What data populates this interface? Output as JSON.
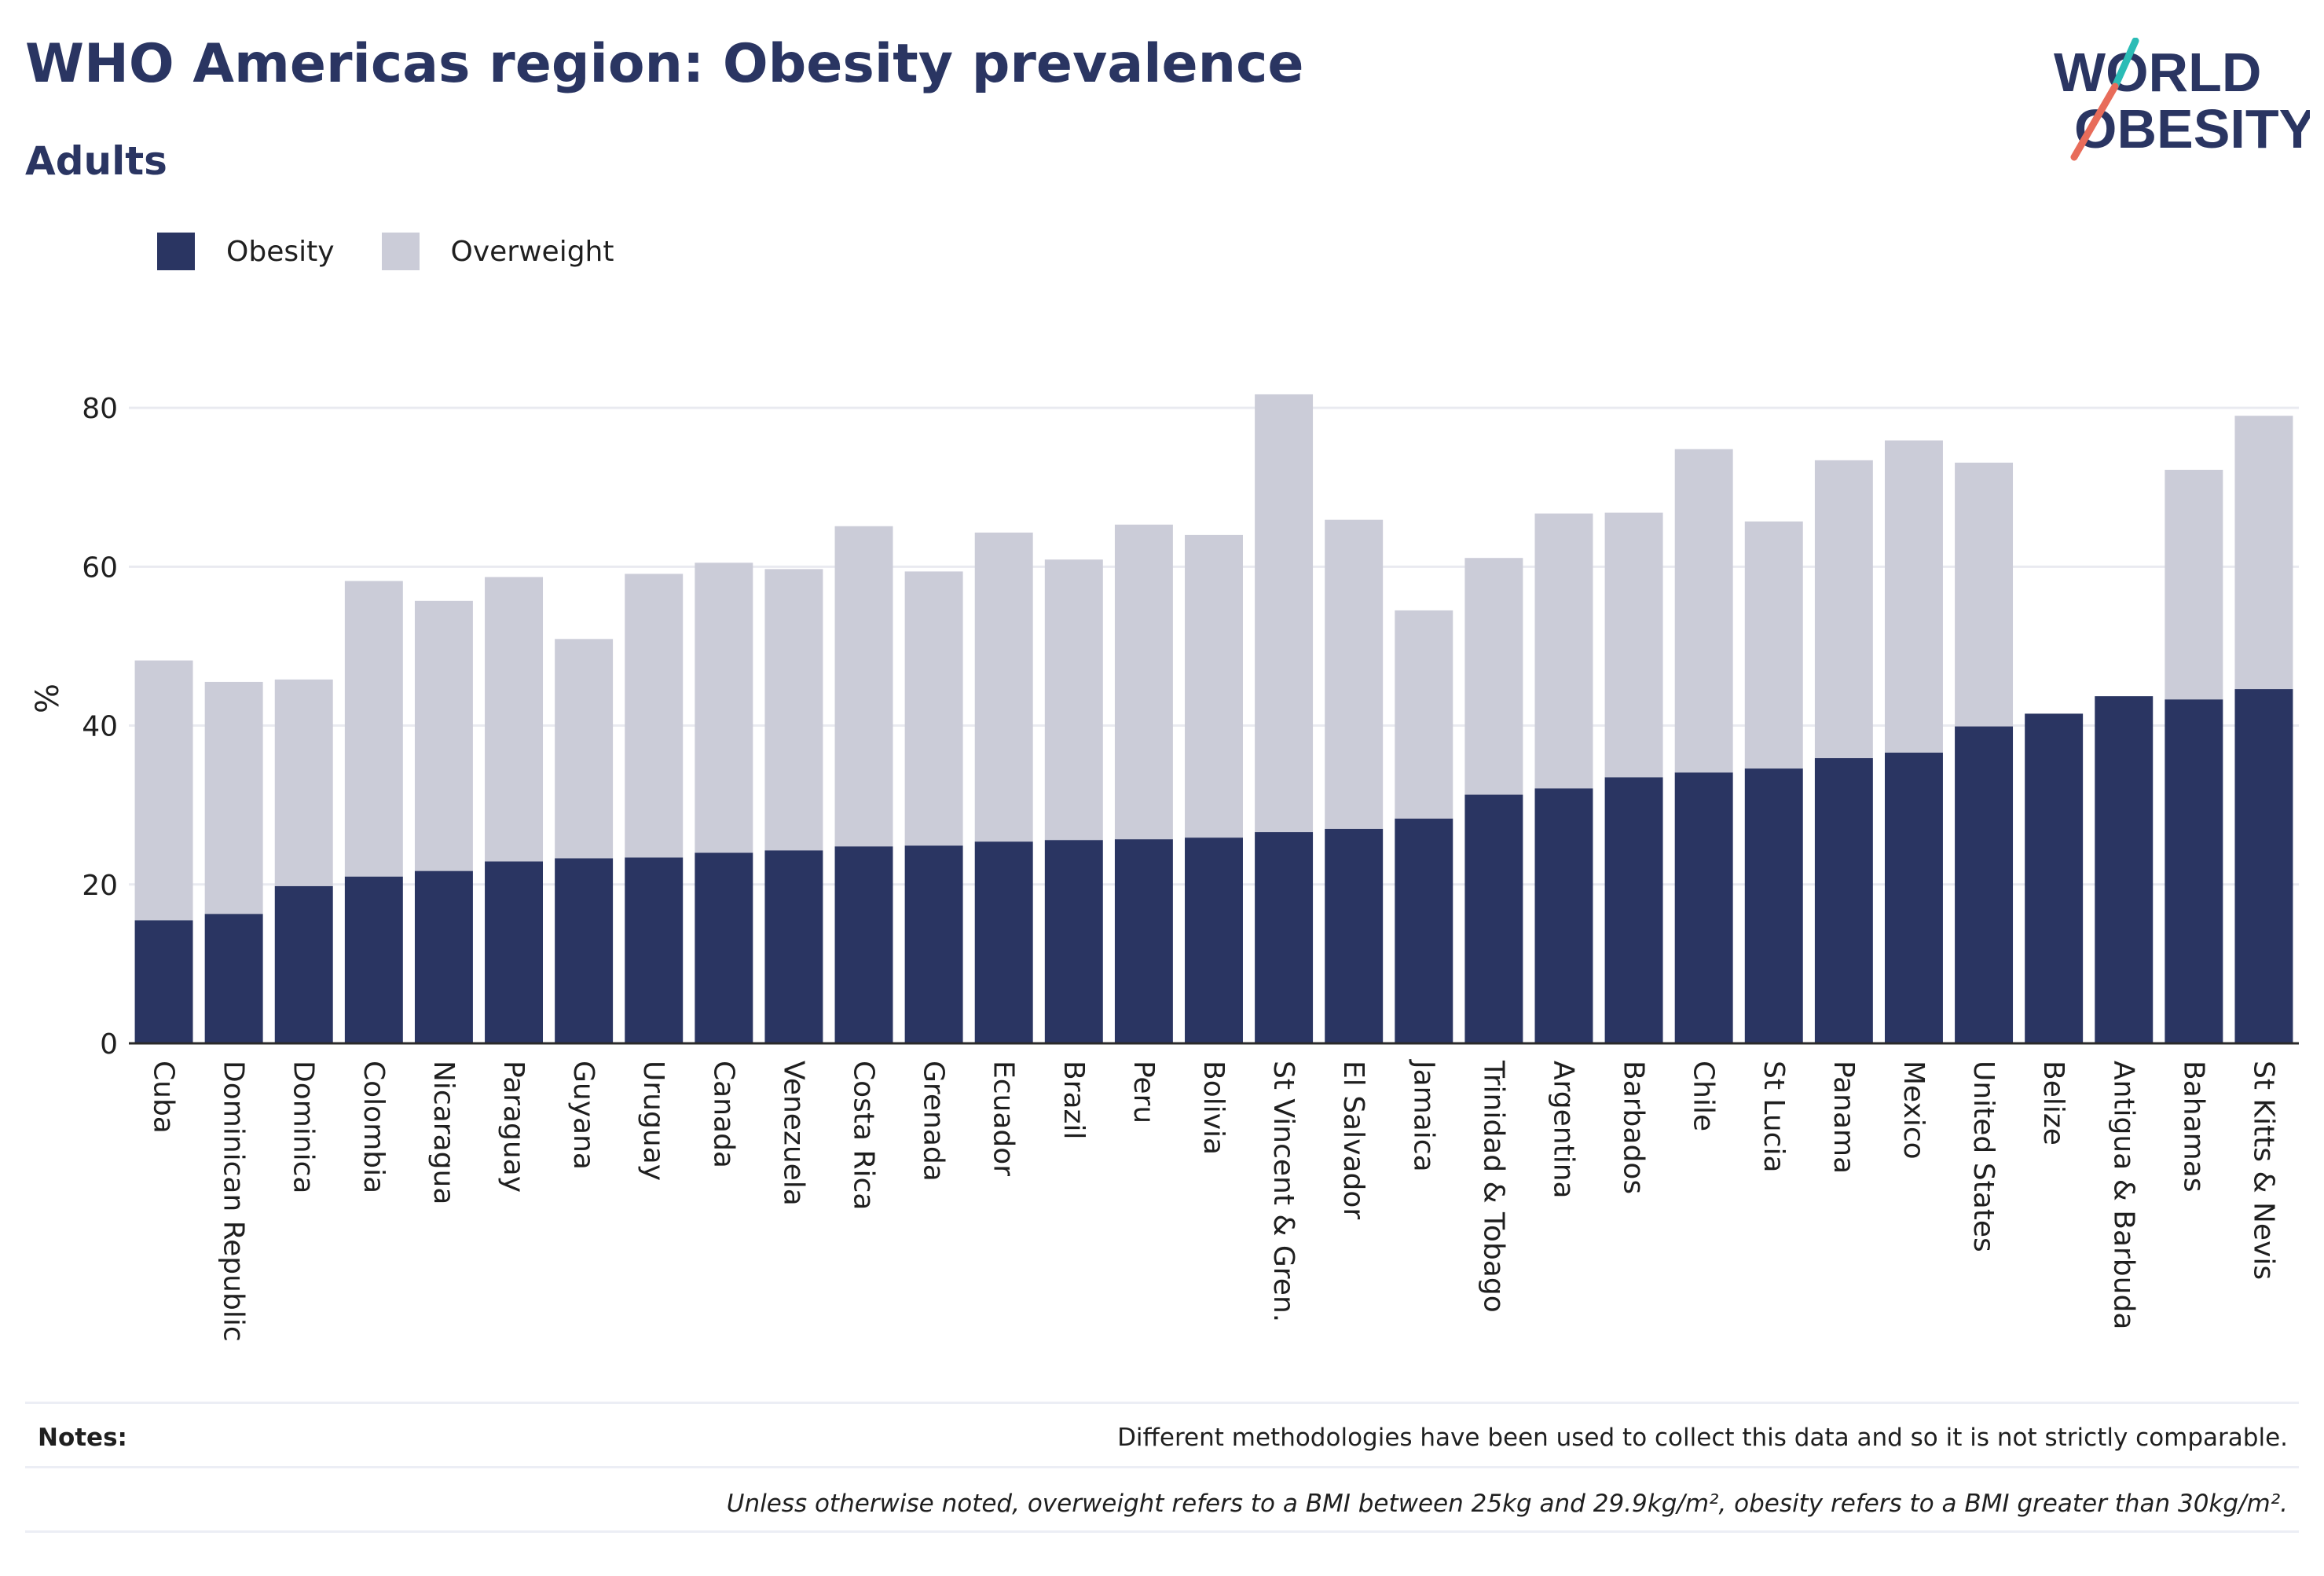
{
  "header": {
    "title": "WHO Americas region: Obesity prevalence",
    "subtitle": "Adults"
  },
  "logo": {
    "line1": "WORLD",
    "line2": "OBESITY"
  },
  "legend": {
    "items": [
      {
        "label": "Obesity",
        "color": "#2a3562"
      },
      {
        "label": "Overweight",
        "color": "#cbccd8"
      }
    ]
  },
  "notes": {
    "label": "Notes:",
    "text": "Different methodologies have been used to collect this data and so it is not strictly comparable.",
    "footnote": "Unless otherwise noted, overweight refers to a BMI between 25kg and 29.9kg/m², obesity refers to a BMI greater than 30kg/m²."
  },
  "chart_data": {
    "type": "bar",
    "stacked": true,
    "ylabel": "%",
    "xlabel": "",
    "ylim": [
      0,
      90
    ],
    "yticks": [
      0,
      20,
      40,
      60,
      80
    ],
    "grid": true,
    "legend_position": "top-left",
    "categories": [
      "Cuba",
      "Dominican Republic",
      "Dominica",
      "Colombia",
      "Nicaragua",
      "Paraguay",
      "Guyana",
      "Uruguay",
      "Canada",
      "Venezuela",
      "Costa Rica",
      "Grenada",
      "Ecuador",
      "Brazil",
      "Peru",
      "Bolivia",
      "St Vincent & Gren.",
      "El Salvador",
      "Jamaica",
      "Trinidad & Tobago",
      "Argentina",
      "Barbados",
      "Chile",
      "St Lucia",
      "Panama",
      "Mexico",
      "United States",
      "Belize",
      "Antigua & Barbuda",
      "Bahamas",
      "St Kitts & Nevis"
    ],
    "series": [
      {
        "name": "Obesity",
        "color": "#2a3562",
        "values": [
          15.5,
          16.3,
          19.8,
          21.0,
          21.7,
          22.9,
          23.3,
          23.4,
          24.0,
          24.3,
          24.8,
          24.9,
          25.4,
          25.6,
          25.7,
          25.9,
          26.6,
          27.0,
          28.3,
          31.3,
          32.1,
          33.5,
          34.1,
          34.6,
          35.9,
          36.6,
          39.9,
          41.5,
          43.7,
          43.3,
          44.6
        ]
      },
      {
        "name": "Overweight",
        "color": "#cbccd8",
        "values": [
          32.7,
          29.2,
          26.0,
          37.2,
          34.0,
          35.8,
          27.6,
          35.7,
          36.5,
          35.4,
          40.3,
          34.5,
          38.9,
          35.3,
          39.6,
          38.1,
          55.1,
          38.9,
          26.2,
          29.8,
          34.6,
          33.3,
          40.7,
          31.1,
          37.5,
          39.3,
          33.2,
          0,
          0,
          28.9,
          34.4
        ]
      }
    ]
  }
}
